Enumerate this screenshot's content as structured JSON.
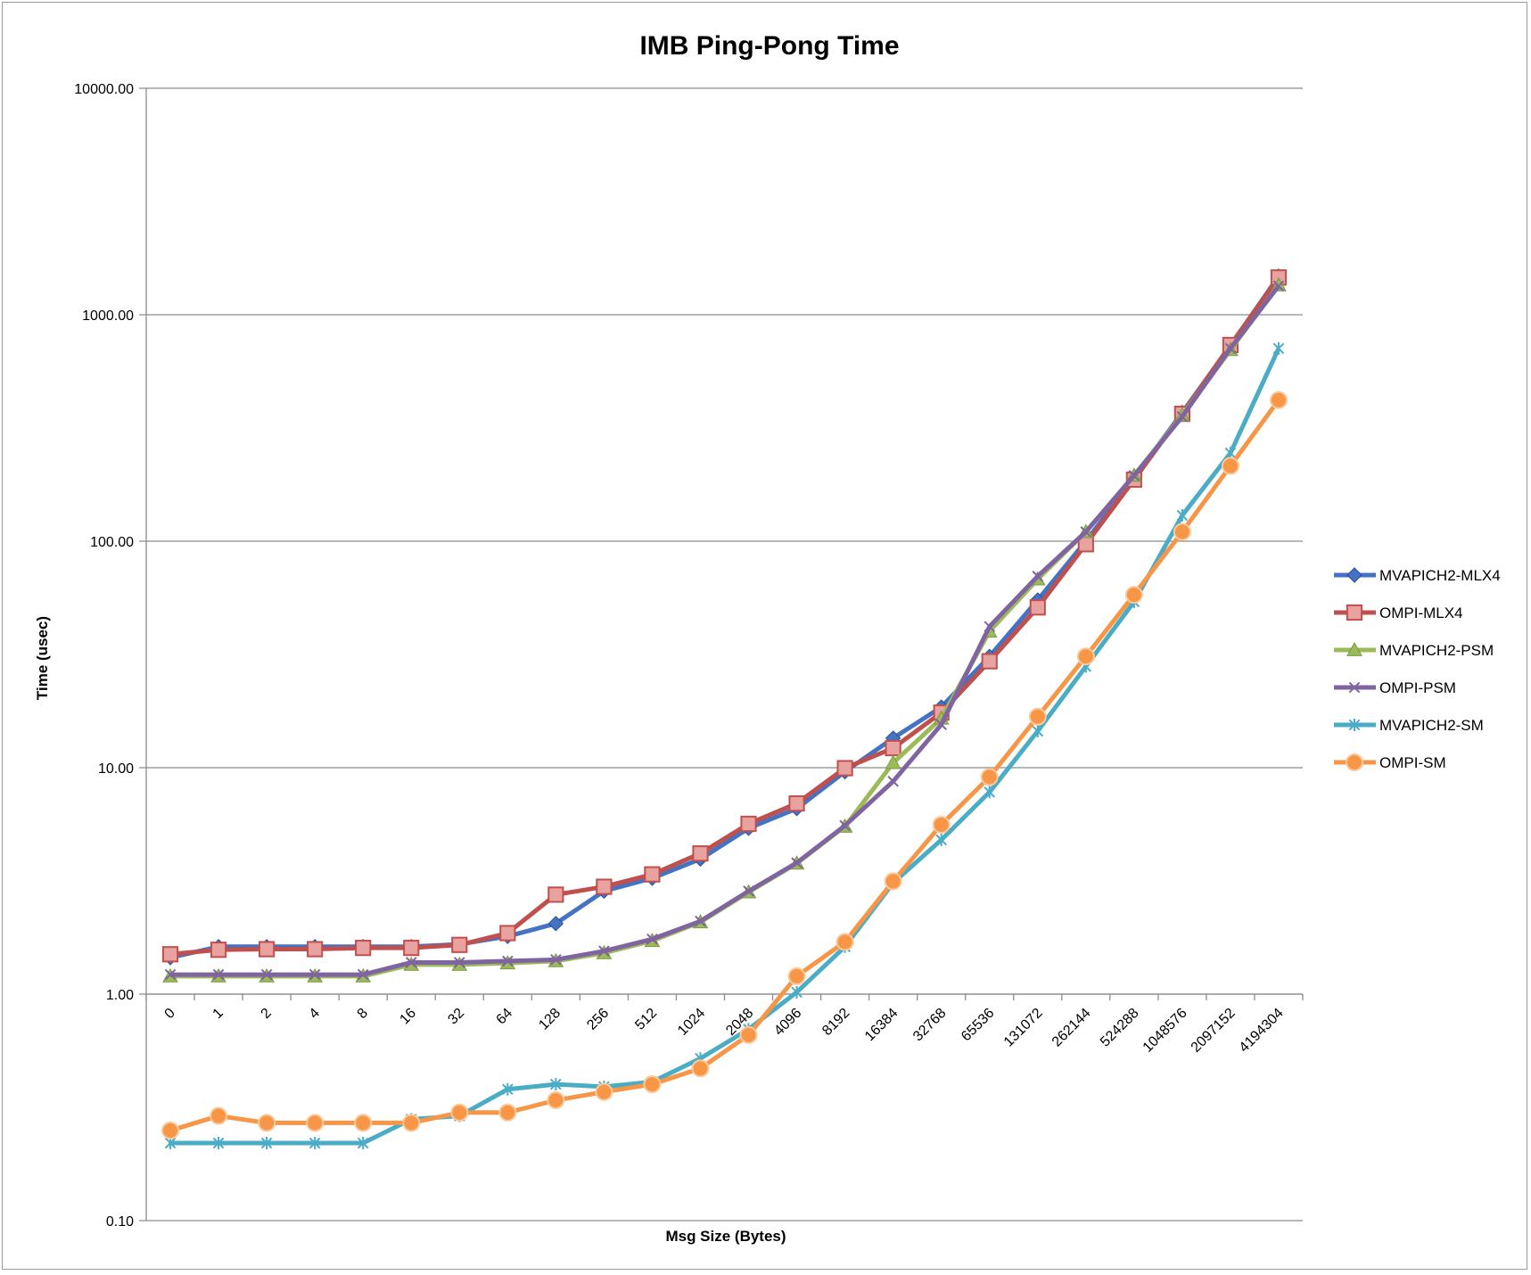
{
  "chart_data": {
    "type": "line",
    "title": "IMB Ping-Pong Time",
    "xlabel": "Msg Size (Bytes)",
    "ylabel": "Time (usec)",
    "yscale": "log",
    "ylim": [
      0.1,
      10000
    ],
    "yticks": [
      "10000.00",
      "1000.00",
      "100.00",
      "10.00",
      "1.00",
      "0.10"
    ],
    "grid": true,
    "legend_position": "right",
    "categories": [
      "0",
      "1",
      "2",
      "4",
      "8",
      "16",
      "32",
      "64",
      "128",
      "256",
      "512",
      "1024",
      "2048",
      "4096",
      "8192",
      "16384",
      "32768",
      "65536",
      "131072",
      "262144",
      "524288",
      "1048576",
      "2097152",
      "4194304"
    ],
    "series": [
      {
        "name": "MVAPICH2-MLX4",
        "color": "#4472C4",
        "marker": "diamond",
        "values": [
          1.45,
          1.62,
          1.62,
          1.62,
          1.62,
          1.62,
          1.66,
          1.8,
          2.05,
          2.85,
          3.25,
          3.95,
          5.4,
          6.6,
          9.6,
          13.5,
          18.5,
          31.0,
          55.0,
          100.0,
          190.0,
          370.0,
          730.0,
          1480.0
        ]
      },
      {
        "name": "OMPI-MLX4",
        "color": "#C0504D",
        "marker": "square",
        "values": [
          1.5,
          1.57,
          1.58,
          1.58,
          1.6,
          1.6,
          1.65,
          1.86,
          2.75,
          2.98,
          3.38,
          4.18,
          5.65,
          6.95,
          9.95,
          12.2,
          17.5,
          29.5,
          51.0,
          97.0,
          187.0,
          365.0,
          735.0,
          1460.0
        ]
      },
      {
        "name": "MVAPICH2-PSM",
        "color": "#9BBB59",
        "marker": "triangle",
        "values": [
          1.2,
          1.2,
          1.2,
          1.2,
          1.2,
          1.35,
          1.35,
          1.37,
          1.4,
          1.52,
          1.72,
          2.08,
          2.82,
          3.78,
          5.5,
          10.5,
          16.5,
          40.0,
          68.0,
          110.0,
          195.0,
          360.0,
          700.0,
          1350.0
        ]
      },
      {
        "name": "OMPI-PSM",
        "color": "#8064A2",
        "marker": "x",
        "values": [
          1.22,
          1.22,
          1.22,
          1.22,
          1.22,
          1.38,
          1.38,
          1.4,
          1.42,
          1.55,
          1.75,
          2.1,
          2.85,
          3.8,
          5.55,
          8.7,
          15.5,
          42.0,
          70.0,
          110.0,
          195.0,
          355.0,
          710.0,
          1340.0
        ]
      },
      {
        "name": "MVAPICH2-SM",
        "color": "#4BACC6",
        "marker": "star",
        "values": [
          0.22,
          0.22,
          0.22,
          0.22,
          0.22,
          0.28,
          0.29,
          0.38,
          0.4,
          0.39,
          0.41,
          0.52,
          0.7,
          1.02,
          1.62,
          3.1,
          4.8,
          7.8,
          14.5,
          28.0,
          54.0,
          130.0,
          245.0,
          710.0
        ]
      },
      {
        "name": "OMPI-SM",
        "color": "#F79646",
        "marker": "circle",
        "values": [
          0.25,
          0.29,
          0.27,
          0.27,
          0.27,
          0.27,
          0.3,
          0.3,
          0.34,
          0.37,
          0.4,
          0.47,
          0.66,
          1.2,
          1.7,
          3.15,
          5.6,
          9.1,
          16.8,
          31.0,
          58.0,
          110.0,
          215.0,
          420.0
        ]
      }
    ]
  }
}
